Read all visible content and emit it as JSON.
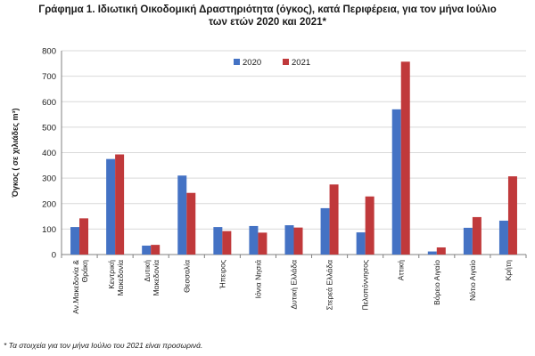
{
  "title": {
    "line1": "Γράφημα 1. Ιδιωτική Οικοδομική Δραστηριότητα (όγκος), κατά Περιφέρεια, για τον μήνα  Ιούλιο",
    "line2": "των ετών 2020 και 2021*"
  },
  "footnote": "* Τα στοιχεία για τον μήνα Ιούλιο του 2021 είναι προσωρινά.",
  "colors": {
    "series_2020": "#4472c4",
    "series_2021": "#c0393b",
    "grid": "#d9d9d9",
    "axis": "#808080"
  },
  "chart_data": {
    "type": "bar",
    "title": "Γράφημα 1. Ιδιωτική Οικοδομική Δραστηριότητα (όγκος), κατά Περιφέρεια, για τον μήνα  Ιούλιο των ετών 2020 και 2021*",
    "ylabel": "Όγκος ( σε χιλιάδες  m³)",
    "xlabel": "",
    "ylim": [
      0,
      800
    ],
    "yticks": [
      0,
      100,
      200,
      300,
      400,
      500,
      600,
      700,
      800
    ],
    "grid": true,
    "legend": "top-center",
    "categories": [
      "Αν.Μακεδονία & Θράκη",
      "Κεντρική Μακεδονία",
      "Δυτική Μακεδονία",
      "Θεσσαλία",
      "Ήπειρος",
      "Ιόνια Νησιά",
      "Δυτική Ελλάδα",
      "Στερεά Ελλάδα",
      "Πελοπόννησος",
      "Αττική",
      "Βόρειο Αιγαίο",
      "Νότιο Αιγαίο",
      "Κρήτη"
    ],
    "series": [
      {
        "name": "2020",
        "values": [
          108,
          375,
          35,
          310,
          108,
          112,
          115,
          182,
          87,
          570,
          12,
          105,
          133
        ]
      },
      {
        "name": "2021",
        "values": [
          142,
          393,
          38,
          242,
          92,
          86,
          106,
          275,
          228,
          757,
          28,
          147,
          307
        ]
      }
    ]
  }
}
